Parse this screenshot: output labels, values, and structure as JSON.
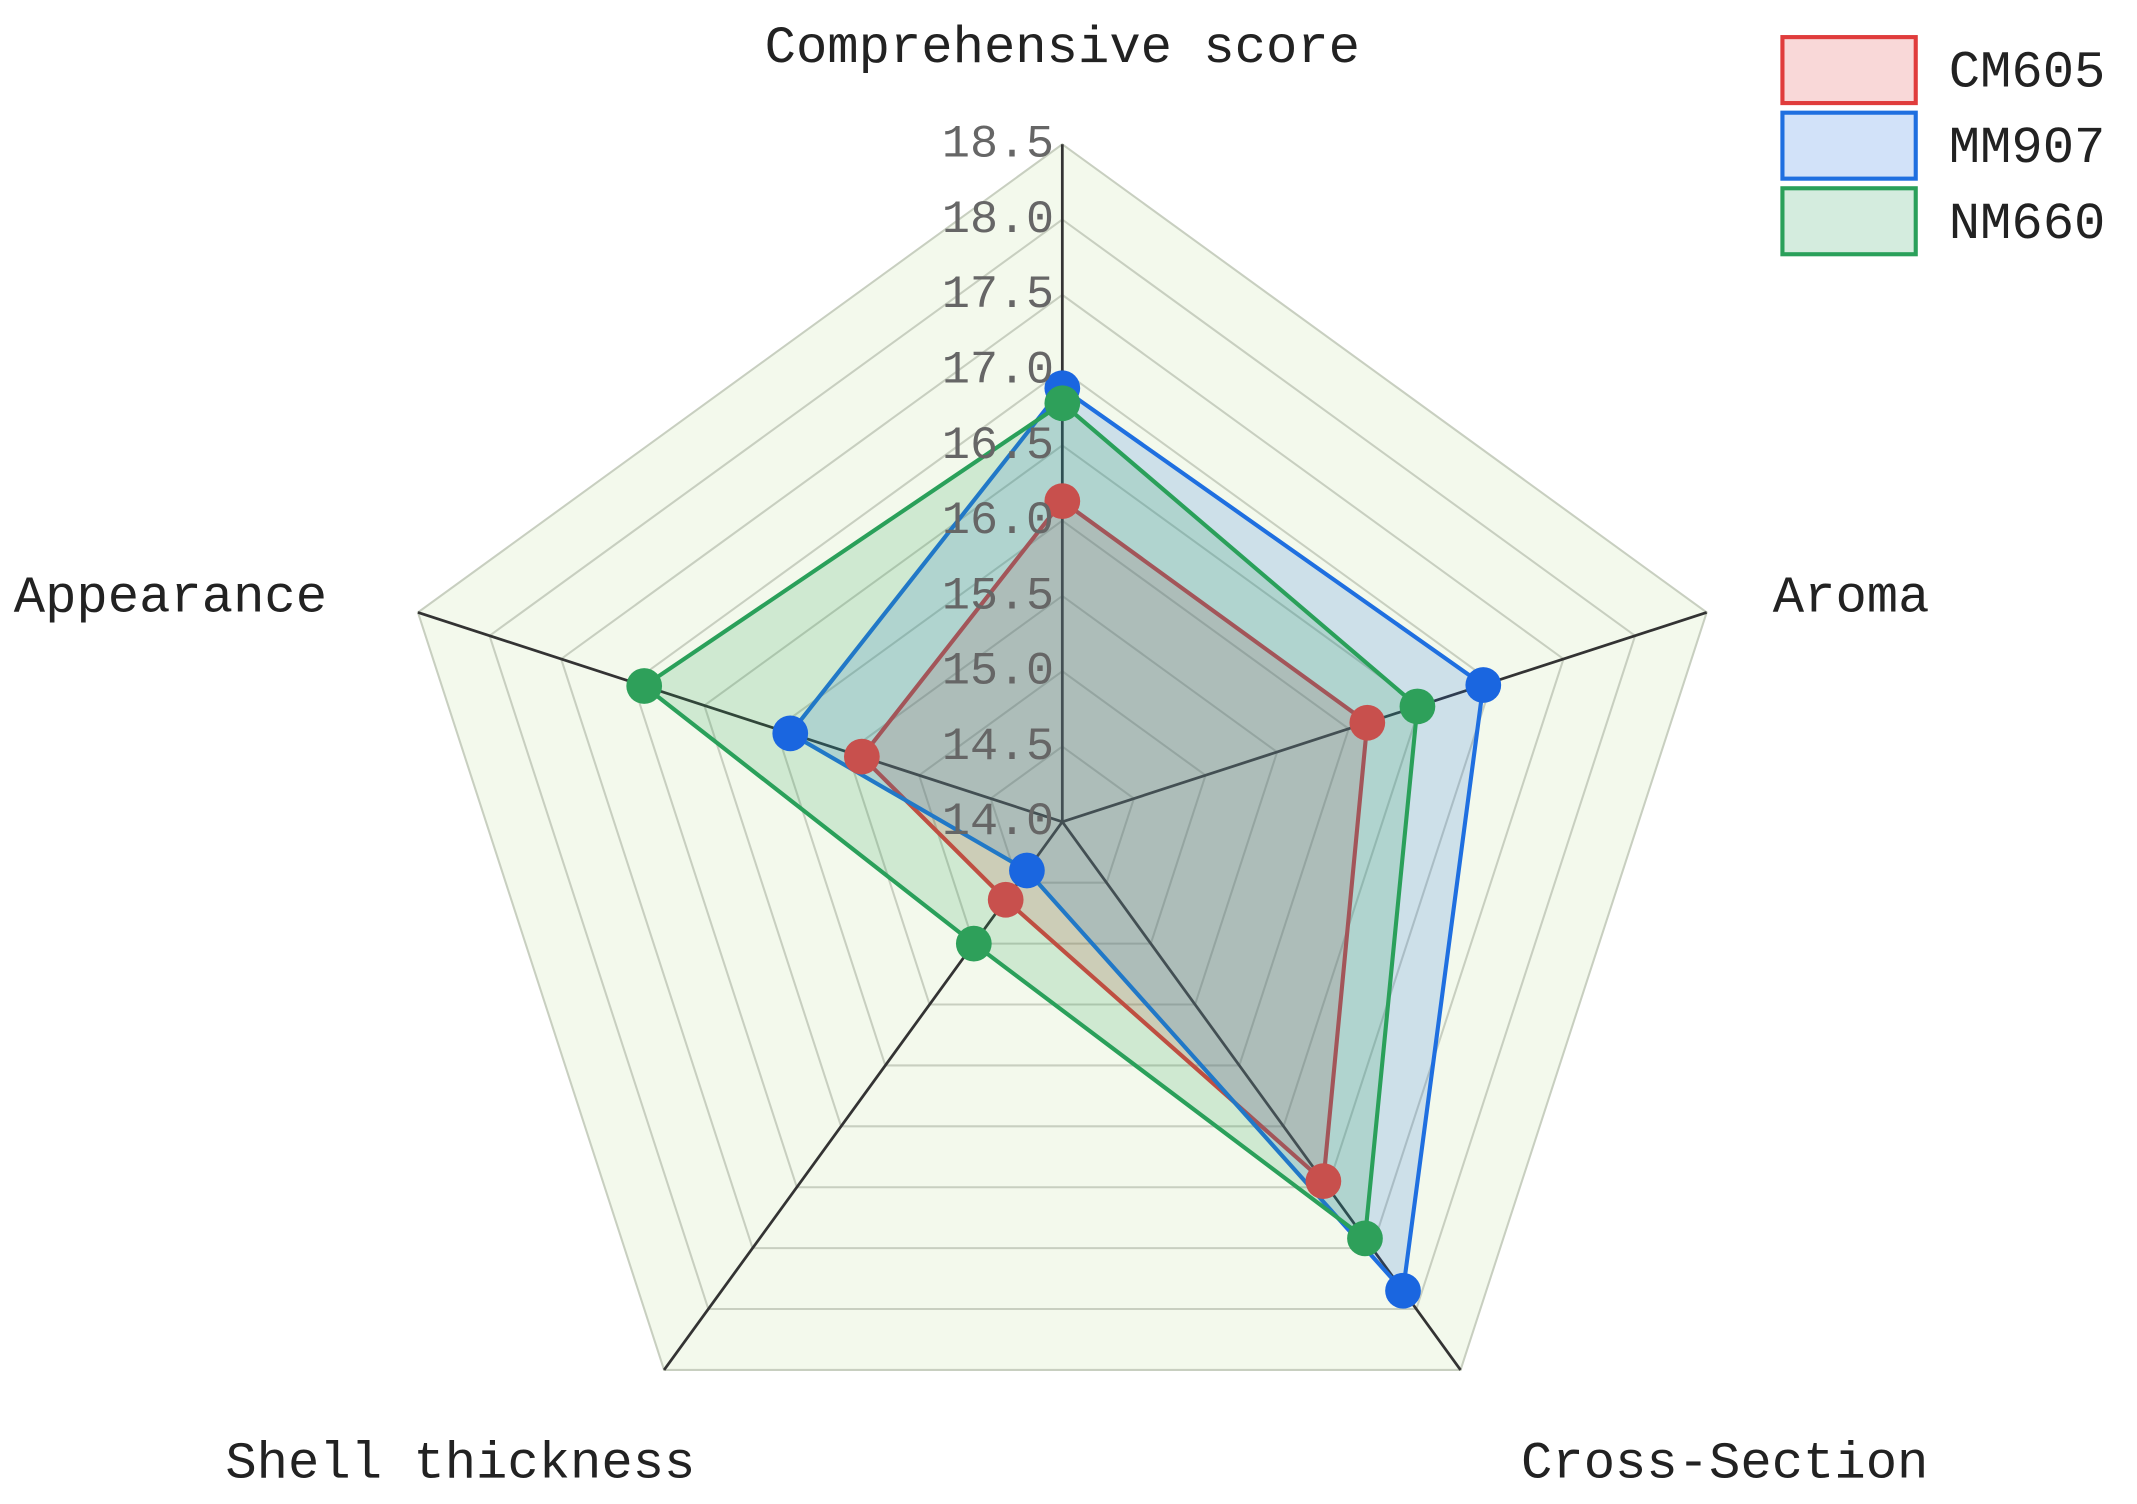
{
  "chart_data": {
    "type": "radar",
    "categories": [
      "Comprehensive score",
      "Aroma",
      "Cross-Section",
      "Shell thickness",
      "Appearance"
    ],
    "series": [
      {
        "name": "CM605",
        "color": "#e03c3c",
        "marker_color": "#c8504d",
        "values": [
          16.13,
          16.13,
          16.95,
          14.64,
          15.4
        ]
      },
      {
        "name": "MM907",
        "color": "#1f6fe0",
        "marker_color": "#1a66e0",
        "values": [
          16.88,
          16.94,
          17.85,
          14.4,
          15.9
        ]
      },
      {
        "name": "NM660",
        "color": "#2aa05a",
        "marker_color": "#2ea05a",
        "values": [
          16.78,
          16.48,
          17.42,
          15.0,
          16.92
        ]
      }
    ],
    "rlim": [
      14,
      18.5
    ],
    "rticks": [
      {
        "value": 14,
        "label": "14.0"
      },
      14.5,
      {
        "value": 15,
        "label": "15.0"
      },
      15.5,
      {
        "value": 16,
        "label": "16.0"
      },
      16.5,
      {
        "value": 17,
        "label": "17.0"
      },
      17.5,
      {
        "value": 18,
        "label": "18.0"
      },
      18.5
    ],
    "legend": "upper right"
  }
}
